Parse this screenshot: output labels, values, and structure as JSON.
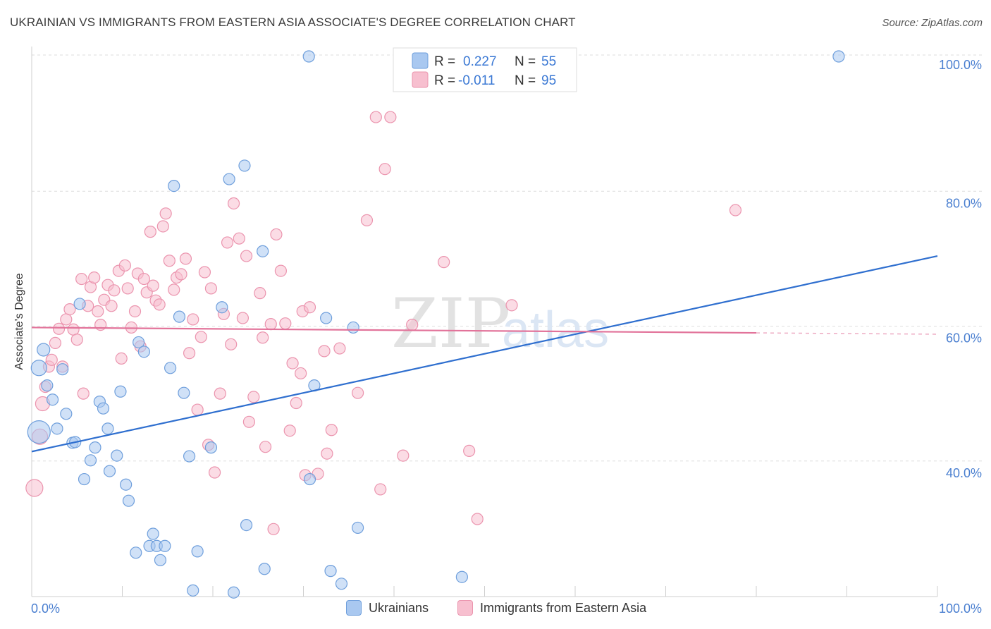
{
  "title": "UKRAINIAN VS IMMIGRANTS FROM EASTERN ASIA ASSOCIATE'S DEGREE CORRELATION CHART",
  "source": "Source: ZipAtlas.com",
  "watermark": {
    "zip": "ZIP",
    "atlas": "atlas"
  },
  "legend_top": {
    "series": [
      {
        "r_label": "R = ",
        "r_value": "0.227",
        "n_label": "N = ",
        "n_value": "55"
      },
      {
        "r_label": "R = ",
        "r_value": "-0.011",
        "n_label": "N = ",
        "n_value": "95"
      }
    ]
  },
  "legend_bottom": [
    "Ukrainians",
    "Immigrants from Eastern Asia"
  ],
  "colors": {
    "blue_fill": "#a9c8f0",
    "blue_stroke": "#6f9fdc",
    "blue_line": "#2f6fcf",
    "pink_fill": "#f7bfcf",
    "pink_stroke": "#eb94ae",
    "pink_line": "#e2739a",
    "axis_text": "#4a7fd0",
    "grid": "#dddddd"
  },
  "chart_data": {
    "type": "scatter",
    "title": "UKRAINIAN VS IMMIGRANTS FROM EASTERN ASIA ASSOCIATE'S DEGREE CORRELATION CHART",
    "xlabel": "",
    "ylabel": "Associate's Degree",
    "xlim": [
      0,
      100
    ],
    "ylim": [
      20,
      102
    ],
    "x_tick_labels": [
      "0.0%",
      "100.0%"
    ],
    "y_ticks": [
      40,
      60,
      80,
      100
    ],
    "y_tick_labels": [
      "40.0%",
      "60.0%",
      "80.0%",
      "100.0%"
    ],
    "grid": true,
    "series": [
      {
        "name": "Ukrainians",
        "R": 0.227,
        "N": 55,
        "trend": {
          "x": [
            0,
            100
          ],
          "y": [
            41.4,
            70.4
          ]
        },
        "points": [
          {
            "x": 0.8,
            "y": 44.3,
            "s": 16
          },
          {
            "x": 0.8,
            "y": 53.8,
            "s": 11
          },
          {
            "x": 1.3,
            "y": 56.5,
            "s": 9
          },
          {
            "x": 1.7,
            "y": 51.2,
            "s": 8
          },
          {
            "x": 2.3,
            "y": 49.1,
            "s": 8
          },
          {
            "x": 2.8,
            "y": 44.8,
            "s": 8
          },
          {
            "x": 3.4,
            "y": 53.6,
            "s": 8
          },
          {
            "x": 3.8,
            "y": 47.0,
            "s": 8
          },
          {
            "x": 4.5,
            "y": 42.7,
            "s": 8
          },
          {
            "x": 4.8,
            "y": 42.8,
            "s": 8
          },
          {
            "x": 5.3,
            "y": 63.3,
            "s": 8
          },
          {
            "x": 5.8,
            "y": 37.3,
            "s": 8
          },
          {
            "x": 6.5,
            "y": 40.1,
            "s": 8
          },
          {
            "x": 7.0,
            "y": 42.0,
            "s": 8
          },
          {
            "x": 7.5,
            "y": 48.8,
            "s": 8
          },
          {
            "x": 7.9,
            "y": 47.8,
            "s": 8
          },
          {
            "x": 8.4,
            "y": 44.8,
            "s": 8
          },
          {
            "x": 8.6,
            "y": 38.5,
            "s": 8
          },
          {
            "x": 9.4,
            "y": 40.8,
            "s": 8
          },
          {
            "x": 9.8,
            "y": 50.3,
            "s": 8
          },
          {
            "x": 10.4,
            "y": 36.5,
            "s": 8
          },
          {
            "x": 10.7,
            "y": 34.1,
            "s": 8
          },
          {
            "x": 11.5,
            "y": 26.4,
            "s": 8
          },
          {
            "x": 11.8,
            "y": 57.6,
            "s": 8
          },
          {
            "x": 12.4,
            "y": 56.2,
            "s": 8
          },
          {
            "x": 13.0,
            "y": 27.4,
            "s": 8
          },
          {
            "x": 13.4,
            "y": 29.2,
            "s": 8
          },
          {
            "x": 13.8,
            "y": 27.4,
            "s": 8
          },
          {
            "x": 14.2,
            "y": 25.3,
            "s": 8
          },
          {
            "x": 14.7,
            "y": 27.4,
            "s": 8
          },
          {
            "x": 15.3,
            "y": 53.8,
            "s": 8
          },
          {
            "x": 15.7,
            "y": 80.8,
            "s": 8
          },
          {
            "x": 16.3,
            "y": 61.4,
            "s": 8
          },
          {
            "x": 16.8,
            "y": 50.1,
            "s": 8
          },
          {
            "x": 17.4,
            "y": 40.7,
            "s": 8
          },
          {
            "x": 17.8,
            "y": 20.8,
            "s": 8
          },
          {
            "x": 18.3,
            "y": 26.6,
            "s": 8
          },
          {
            "x": 19.8,
            "y": 42.0,
            "s": 8
          },
          {
            "x": 21.0,
            "y": 62.8,
            "s": 8
          },
          {
            "x": 21.8,
            "y": 81.8,
            "s": 8
          },
          {
            "x": 22.3,
            "y": 20.5,
            "s": 8
          },
          {
            "x": 23.5,
            "y": 83.8,
            "s": 8
          },
          {
            "x": 23.7,
            "y": 30.5,
            "s": 8
          },
          {
            "x": 25.5,
            "y": 71.1,
            "s": 8
          },
          {
            "x": 25.7,
            "y": 24.0,
            "s": 8
          },
          {
            "x": 30.6,
            "y": 100.0,
            "s": 8
          },
          {
            "x": 30.7,
            "y": 37.3,
            "s": 8
          },
          {
            "x": 31.2,
            "y": 51.2,
            "s": 8
          },
          {
            "x": 32.5,
            "y": 61.2,
            "s": 8
          },
          {
            "x": 33.0,
            "y": 23.7,
            "s": 8
          },
          {
            "x": 34.2,
            "y": 21.8,
            "s": 8
          },
          {
            "x": 35.5,
            "y": 59.8,
            "s": 8
          },
          {
            "x": 36.0,
            "y": 30.1,
            "s": 8
          },
          {
            "x": 47.5,
            "y": 22.8,
            "s": 8
          },
          {
            "x": 89.1,
            "y": 100.0,
            "s": 8
          }
        ]
      },
      {
        "name": "Immigrants from Eastern Asia",
        "R": -0.011,
        "N": 95,
        "trend": {
          "x": [
            0,
            80
          ],
          "y": [
            59.8,
            59.0
          ]
        },
        "points": [
          {
            "x": 0.3,
            "y": 36.0,
            "s": 12
          },
          {
            "x": 0.9,
            "y": 43.6,
            "s": 11
          },
          {
            "x": 1.2,
            "y": 48.5,
            "s": 10
          },
          {
            "x": 1.5,
            "y": 51.0,
            "s": 8
          },
          {
            "x": 1.9,
            "y": 54.0,
            "s": 8
          },
          {
            "x": 2.2,
            "y": 55.0,
            "s": 8
          },
          {
            "x": 2.6,
            "y": 57.5,
            "s": 8
          },
          {
            "x": 3.0,
            "y": 59.6,
            "s": 8
          },
          {
            "x": 3.4,
            "y": 54.0,
            "s": 8
          },
          {
            "x": 3.8,
            "y": 61.0,
            "s": 8
          },
          {
            "x": 4.2,
            "y": 62.5,
            "s": 8
          },
          {
            "x": 4.6,
            "y": 59.5,
            "s": 8
          },
          {
            "x": 5.0,
            "y": 58.0,
            "s": 8
          },
          {
            "x": 5.5,
            "y": 67.0,
            "s": 8
          },
          {
            "x": 5.7,
            "y": 50.0,
            "s": 8
          },
          {
            "x": 6.2,
            "y": 63.0,
            "s": 8
          },
          {
            "x": 6.5,
            "y": 65.8,
            "s": 8
          },
          {
            "x": 6.9,
            "y": 67.2,
            "s": 8
          },
          {
            "x": 7.3,
            "y": 62.2,
            "s": 8
          },
          {
            "x": 7.6,
            "y": 60.2,
            "s": 8
          },
          {
            "x": 8.0,
            "y": 63.9,
            "s": 8
          },
          {
            "x": 8.4,
            "y": 66.1,
            "s": 8
          },
          {
            "x": 8.8,
            "y": 63.0,
            "s": 8
          },
          {
            "x": 9.1,
            "y": 65.3,
            "s": 8
          },
          {
            "x": 9.6,
            "y": 68.2,
            "s": 8
          },
          {
            "x": 9.9,
            "y": 55.2,
            "s": 8
          },
          {
            "x": 10.3,
            "y": 69.0,
            "s": 8
          },
          {
            "x": 10.6,
            "y": 65.6,
            "s": 8
          },
          {
            "x": 11.0,
            "y": 59.8,
            "s": 8
          },
          {
            "x": 11.4,
            "y": 62.2,
            "s": 8
          },
          {
            "x": 11.7,
            "y": 67.8,
            "s": 8
          },
          {
            "x": 12.0,
            "y": 57.0,
            "s": 8
          },
          {
            "x": 12.4,
            "y": 67.0,
            "s": 8
          },
          {
            "x": 12.7,
            "y": 65.0,
            "s": 8
          },
          {
            "x": 13.1,
            "y": 74.0,
            "s": 8
          },
          {
            "x": 13.4,
            "y": 66.0,
            "s": 8
          },
          {
            "x": 13.7,
            "y": 63.8,
            "s": 8
          },
          {
            "x": 14.1,
            "y": 63.2,
            "s": 8
          },
          {
            "x": 14.5,
            "y": 74.8,
            "s": 8
          },
          {
            "x": 14.8,
            "y": 76.7,
            "s": 8
          },
          {
            "x": 15.2,
            "y": 69.7,
            "s": 8
          },
          {
            "x": 15.7,
            "y": 65.4,
            "s": 8
          },
          {
            "x": 16.0,
            "y": 67.2,
            "s": 8
          },
          {
            "x": 16.5,
            "y": 67.7,
            "s": 8
          },
          {
            "x": 17.0,
            "y": 70.0,
            "s": 8
          },
          {
            "x": 17.4,
            "y": 56.0,
            "s": 8
          },
          {
            "x": 17.8,
            "y": 61.0,
            "s": 8
          },
          {
            "x": 18.3,
            "y": 47.6,
            "s": 8
          },
          {
            "x": 18.7,
            "y": 58.4,
            "s": 8
          },
          {
            "x": 19.1,
            "y": 68.0,
            "s": 8
          },
          {
            "x": 19.5,
            "y": 42.4,
            "s": 8
          },
          {
            "x": 19.8,
            "y": 65.6,
            "s": 8
          },
          {
            "x": 20.2,
            "y": 38.3,
            "s": 8
          },
          {
            "x": 20.8,
            "y": 50.0,
            "s": 8
          },
          {
            "x": 21.2,
            "y": 61.8,
            "s": 8
          },
          {
            "x": 21.6,
            "y": 72.4,
            "s": 8
          },
          {
            "x": 22.0,
            "y": 57.3,
            "s": 8
          },
          {
            "x": 22.3,
            "y": 78.2,
            "s": 8
          },
          {
            "x": 22.9,
            "y": 73.0,
            "s": 8
          },
          {
            "x": 23.3,
            "y": 61.2,
            "s": 8
          },
          {
            "x": 23.7,
            "y": 70.4,
            "s": 8
          },
          {
            "x": 24.0,
            "y": 45.8,
            "s": 8
          },
          {
            "x": 24.5,
            "y": 49.5,
            "s": 8
          },
          {
            "x": 25.2,
            "y": 64.9,
            "s": 8
          },
          {
            "x": 25.5,
            "y": 58.3,
            "s": 8
          },
          {
            "x": 25.8,
            "y": 42.1,
            "s": 8
          },
          {
            "x": 26.4,
            "y": 60.3,
            "s": 8
          },
          {
            "x": 26.7,
            "y": 29.9,
            "s": 8
          },
          {
            "x": 27.0,
            "y": 73.6,
            "s": 8
          },
          {
            "x": 27.5,
            "y": 68.2,
            "s": 8
          },
          {
            "x": 28.0,
            "y": 60.4,
            "s": 8
          },
          {
            "x": 28.5,
            "y": 44.5,
            "s": 8
          },
          {
            "x": 28.8,
            "y": 54.5,
            "s": 8
          },
          {
            "x": 29.2,
            "y": 48.6,
            "s": 8
          },
          {
            "x": 29.7,
            "y": 53.0,
            "s": 8
          },
          {
            "x": 29.9,
            "y": 62.2,
            "s": 8
          },
          {
            "x": 30.2,
            "y": 37.9,
            "s": 8
          },
          {
            "x": 30.7,
            "y": 62.8,
            "s": 8
          },
          {
            "x": 31.6,
            "y": 38.1,
            "s": 8
          },
          {
            "x": 32.3,
            "y": 56.3,
            "s": 8
          },
          {
            "x": 32.6,
            "y": 41.1,
            "s": 8
          },
          {
            "x": 33.1,
            "y": 44.6,
            "s": 8
          },
          {
            "x": 34.0,
            "y": 56.7,
            "s": 8
          },
          {
            "x": 36.0,
            "y": 50.1,
            "s": 8
          },
          {
            "x": 37.0,
            "y": 75.7,
            "s": 8
          },
          {
            "x": 38.0,
            "y": 91.0,
            "s": 8
          },
          {
            "x": 38.5,
            "y": 35.8,
            "s": 8
          },
          {
            "x": 39.0,
            "y": 83.3,
            "s": 8
          },
          {
            "x": 39.6,
            "y": 91.0,
            "s": 8
          },
          {
            "x": 41.0,
            "y": 40.8,
            "s": 8
          },
          {
            "x": 42.0,
            "y": 60.2,
            "s": 8
          },
          {
            "x": 45.5,
            "y": 69.5,
            "s": 8
          },
          {
            "x": 48.3,
            "y": 41.5,
            "s": 8
          },
          {
            "x": 49.2,
            "y": 31.4,
            "s": 8
          },
          {
            "x": 53.0,
            "y": 63.1,
            "s": 8
          },
          {
            "x": 77.7,
            "y": 77.2,
            "s": 8
          }
        ]
      }
    ]
  }
}
